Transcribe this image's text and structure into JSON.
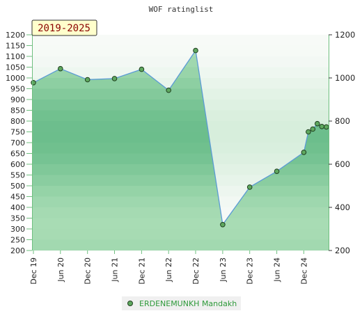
{
  "chart_data": {
    "type": "area",
    "title": "WOF ratinglist",
    "period_label": "2019-2025",
    "ylim": [
      200,
      1200
    ],
    "y_ticks_left": [
      200,
      250,
      300,
      350,
      400,
      450,
      500,
      550,
      600,
      650,
      700,
      750,
      800,
      850,
      900,
      950,
      1000,
      1050,
      1100,
      1150,
      1200
    ],
    "y_ticks_right": [
      200,
      400,
      600,
      800,
      1000,
      1200
    ],
    "x_ticks": [
      {
        "label": "Dec 19",
        "x": 0
      },
      {
        "label": "Jun 20",
        "x": 6
      },
      {
        "label": "Dec 20",
        "x": 12
      },
      {
        "label": "Jun 21",
        "x": 18
      },
      {
        "label": "Dec 21",
        "x": 24
      },
      {
        "label": "Jun 22",
        "x": 30
      },
      {
        "label": "Dec 22",
        "x": 36
      },
      {
        "label": "Jun 23",
        "x": 42
      },
      {
        "label": "Dec 23",
        "x": 48
      },
      {
        "label": "Jun 24",
        "x": 54
      },
      {
        "label": "Dec 24",
        "x": 60
      }
    ],
    "xlim": [
      0,
      65.5
    ],
    "grid": "horizontal bands",
    "legend_position": "bottom",
    "series": [
      {
        "name": "ERDENEMUNKH Mandakh",
        "color": "#5b9bd5",
        "marker_color": "#5fa85f",
        "points": [
          {
            "x": 0,
            "y": 978
          },
          {
            "x": 6,
            "y": 1043
          },
          {
            "x": 12,
            "y": 992
          },
          {
            "x": 18,
            "y": 997
          },
          {
            "x": 24,
            "y": 1040
          },
          {
            "x": 30,
            "y": 943
          },
          {
            "x": 36,
            "y": 1127
          },
          {
            "x": 42,
            "y": 320
          },
          {
            "x": 48,
            "y": 494
          },
          {
            "x": 54,
            "y": 567
          },
          {
            "x": 60,
            "y": 655
          },
          {
            "x": 61,
            "y": 750
          },
          {
            "x": 62,
            "y": 763
          },
          {
            "x": 63,
            "y": 788
          },
          {
            "x": 64,
            "y": 775
          },
          {
            "x": 65,
            "y": 773
          }
        ]
      }
    ]
  }
}
